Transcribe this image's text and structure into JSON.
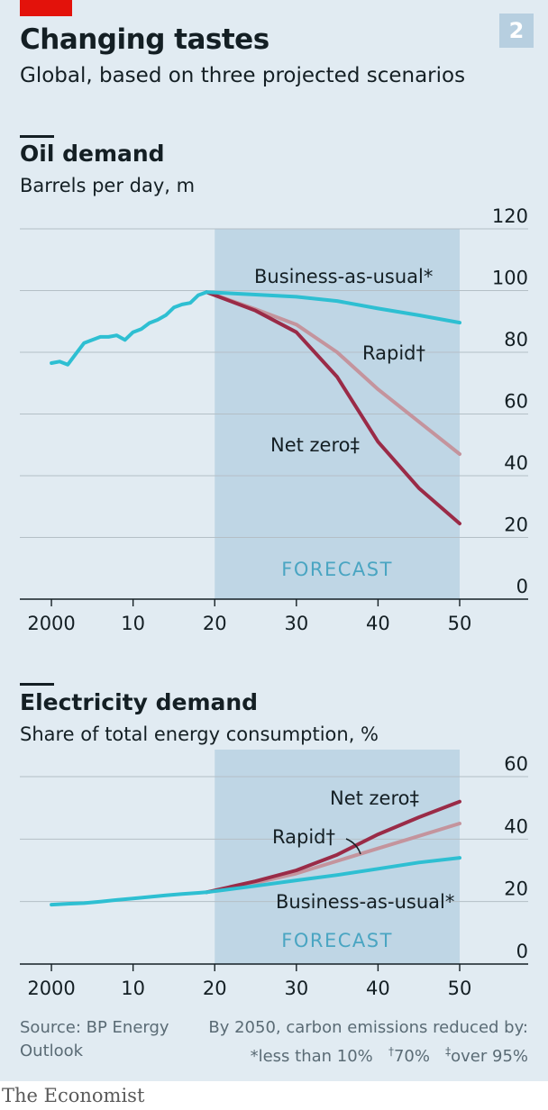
{
  "header": {
    "title": "Changing tastes",
    "subtitle": "Global, based on three projected scenarios",
    "badge": "2"
  },
  "chart_data": [
    {
      "type": "line",
      "title": "Oil demand",
      "ylabel": "Barrels per day, m",
      "xlim": [
        1999,
        2050
      ],
      "ylim": [
        0,
        120
      ],
      "y_ticks": [
        0,
        20,
        40,
        60,
        80,
        100,
        120
      ],
      "x_ticks": [
        2000,
        2010,
        2020,
        2030,
        2040,
        2050
      ],
      "x_tick_labels": [
        "2000",
        "10",
        "20",
        "30",
        "40",
        "50"
      ],
      "forecast": {
        "label": "FORECAST",
        "start": 2020,
        "end": 2050
      },
      "history": {
        "x": [
          2000,
          2001,
          2002,
          2003,
          2004,
          2005,
          2006,
          2007,
          2008,
          2009,
          2010,
          2011,
          2012,
          2013,
          2014,
          2015,
          2016,
          2017,
          2018,
          2019
        ],
        "values": [
          76.5,
          77,
          76,
          79.5,
          83,
          84,
          85,
          85,
          85.5,
          84,
          86.5,
          87.5,
          89.5,
          90.5,
          92,
          94.5,
          95.5,
          96,
          98.5,
          99.5
        ]
      },
      "series": [
        {
          "name": "Business-as-usual*",
          "x": [
            2019,
            2025,
            2030,
            2035,
            2040,
            2045,
            2050
          ],
          "values": [
            99.5,
            98.7,
            98,
            96.6,
            94.2,
            92,
            89.6
          ]
        },
        {
          "name": "Rapid†",
          "x": [
            2019,
            2025,
            2030,
            2035,
            2040,
            2045,
            2050
          ],
          "values": [
            99.5,
            94,
            89,
            80,
            68,
            57.5,
            47
          ]
        },
        {
          "name": "Net zero‡",
          "x": [
            2019,
            2025,
            2030,
            2035,
            2040,
            2045,
            2050
          ],
          "values": [
            99.5,
            93.5,
            86.5,
            72,
            51,
            36,
            24.5
          ]
        }
      ]
    },
    {
      "type": "line",
      "title": "Electricity demand",
      "ylabel": "Share of total energy consumption, %",
      "xlim": [
        1999,
        2050
      ],
      "ylim": [
        0,
        60
      ],
      "y_ticks": [
        0,
        20,
        40,
        60
      ],
      "x_ticks": [
        2000,
        2010,
        2020,
        2030,
        2040,
        2050
      ],
      "x_tick_labels": [
        "2000",
        "10",
        "20",
        "30",
        "40",
        "50"
      ],
      "forecast": {
        "label": "FORECAST",
        "start": 2020,
        "end": 2050
      },
      "history": {
        "x": [
          2000,
          2002,
          2004,
          2006,
          2008,
          2010,
          2012,
          2014,
          2016,
          2018,
          2019
        ],
        "values": [
          19,
          19.3,
          19.5,
          20,
          20.5,
          21,
          21.5,
          22,
          22.4,
          22.8,
          23
        ]
      },
      "series": [
        {
          "name": "Business-as-usual*",
          "x": [
            2019,
            2025,
            2030,
            2035,
            2040,
            2045,
            2050
          ],
          "values": [
            23,
            25,
            26.8,
            28.5,
            30.5,
            32.5,
            34
          ]
        },
        {
          "name": "Rapid†",
          "x": [
            2019,
            2025,
            2030,
            2035,
            2040,
            2045,
            2050
          ],
          "values": [
            23,
            26,
            29,
            33,
            37,
            41,
            45
          ]
        },
        {
          "name": "Net zero‡",
          "x": [
            2019,
            2025,
            2030,
            2035,
            2040,
            2045,
            2050
          ],
          "values": [
            23,
            26.5,
            30,
            35,
            41.5,
            47,
            52
          ]
        }
      ]
    }
  ],
  "footer": {
    "source": [
      "Source: BP Energy",
      "Outlook"
    ],
    "note_line1": "By 2050, carbon emissions reduced by:",
    "note_bau": "*less than 10%",
    "note_rapid_mark": "†",
    "note_rapid": "70%",
    "note_netzero_mark": "‡",
    "note_netzero": "over 95%",
    "logo": "The Economist"
  },
  "colors": {
    "background": "#e1ebf2",
    "forecast_band": "#bfd6e5",
    "business_as_usual": "#2ebfd2",
    "rapid": "#c4949d",
    "net_zero": "#9a2b47",
    "forecast_label": "#4aa5c2",
    "brand_red": "#e3120b"
  }
}
